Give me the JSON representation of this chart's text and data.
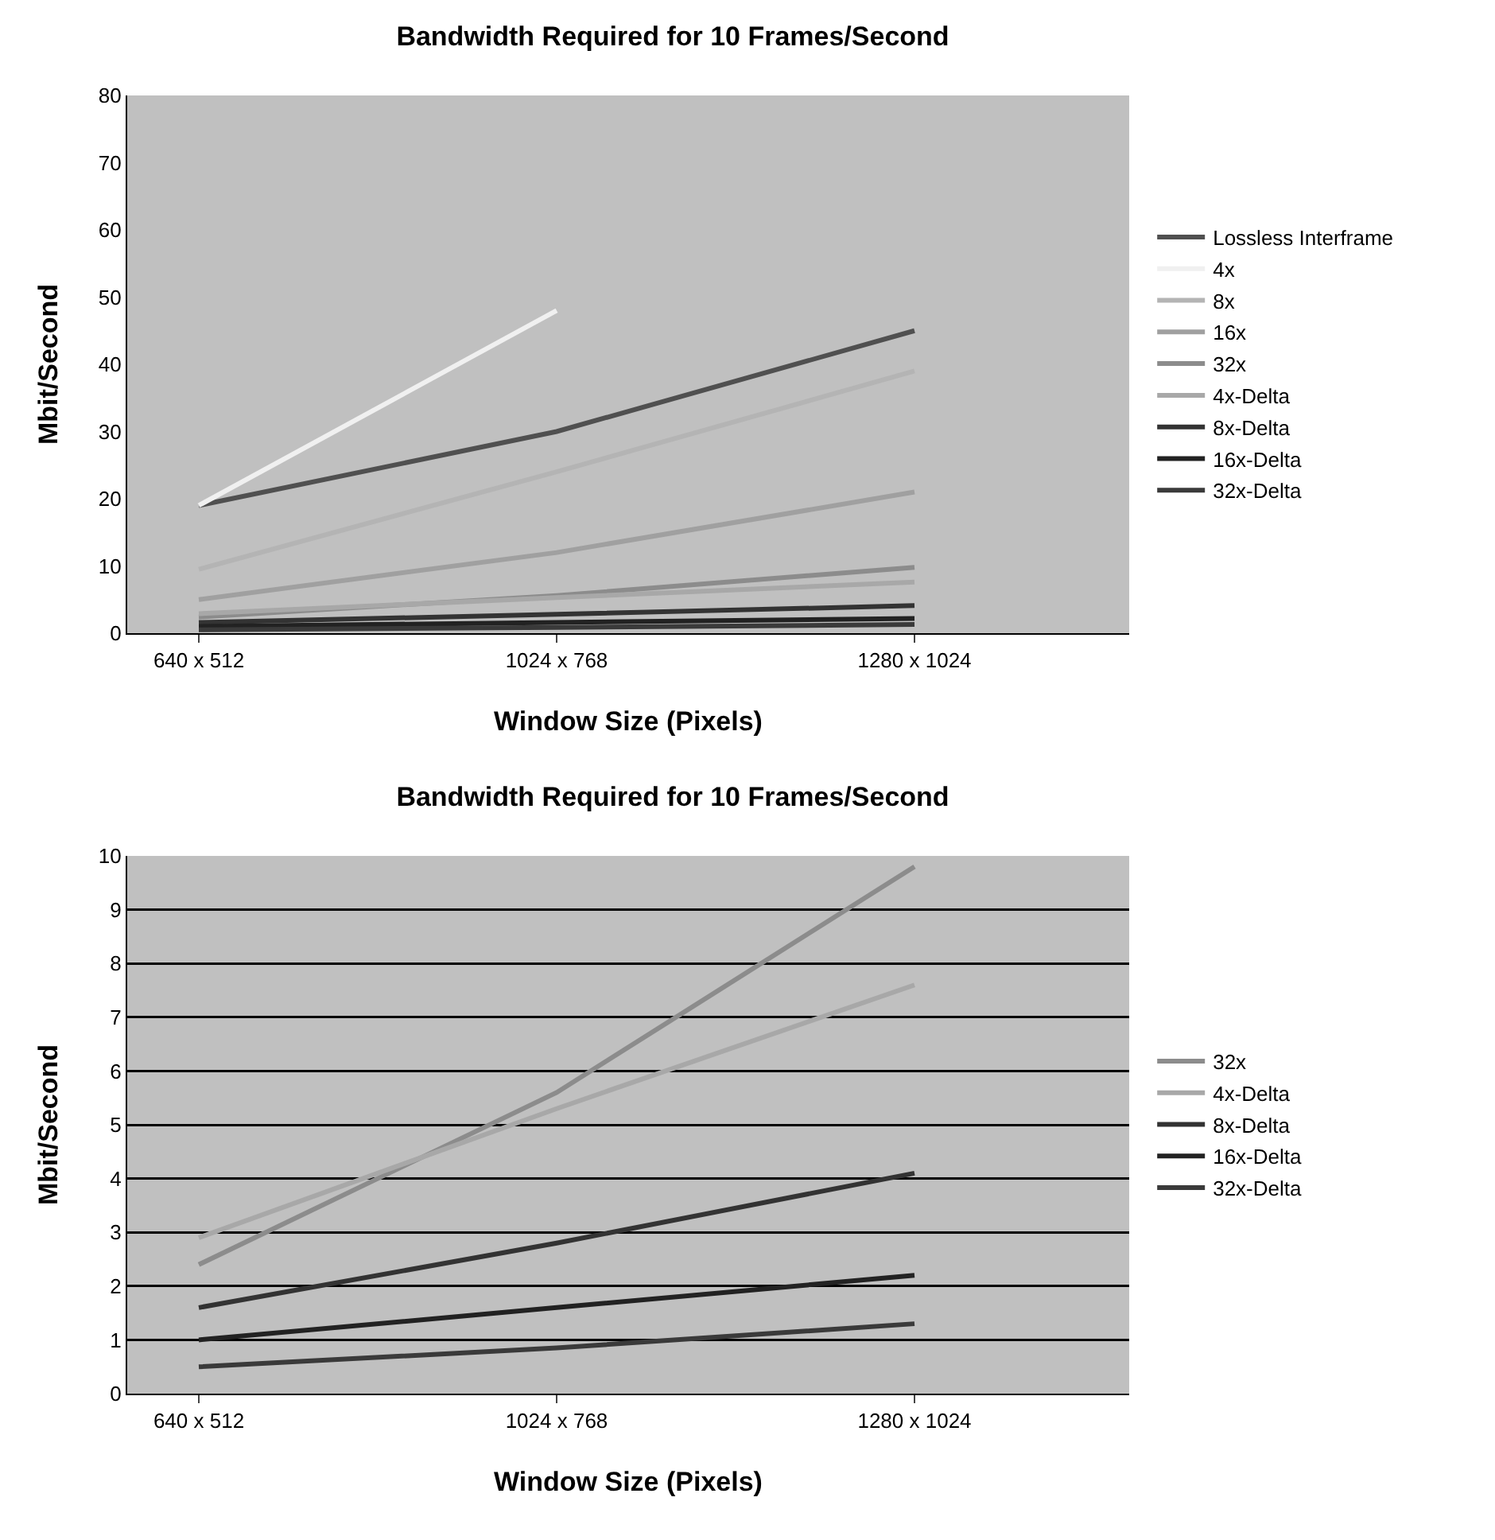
{
  "chart_data": [
    {
      "type": "line",
      "title": "Bandwidth Required for 10 Frames/Second",
      "xlabel": "Window Size (Pixels)",
      "ylabel": "Mbit/Second",
      "categories": [
        "640 x 512",
        "1024 x 768",
        "1280 x 1024"
      ],
      "ylim": [
        0,
        80
      ],
      "yticks": [
        0,
        10,
        20,
        30,
        40,
        50,
        60,
        70,
        80
      ],
      "grid": false,
      "legend": "right",
      "marker": "none",
      "line_style": "solid",
      "series": [
        {
          "name": "Lossless Interframe",
          "color": "#505050",
          "values": [
            19,
            30,
            45
          ]
        },
        {
          "name": "4x",
          "color": "#f0f0f0",
          "values": [
            19,
            48,
            null
          ]
        },
        {
          "name": "8x",
          "color": "#b4b4b4",
          "values": [
            9.5,
            24,
            39
          ]
        },
        {
          "name": "16x",
          "color": "#a0a0a0",
          "values": [
            5,
            12,
            21
          ]
        },
        {
          "name": "32x",
          "color": "#8c8c8c",
          "values": [
            2.4,
            5.6,
            9.8
          ]
        },
        {
          "name": "4x-Delta",
          "color": "#a8a8a8",
          "values": [
            2.9,
            5.3,
            7.6
          ]
        },
        {
          "name": "8x-Delta",
          "color": "#333333",
          "values": [
            1.6,
            2.8,
            4.1
          ]
        },
        {
          "name": "16x-Delta",
          "color": "#222222",
          "values": [
            1,
            1.6,
            2.2
          ]
        },
        {
          "name": "32x-Delta",
          "color": "#3a3a3a",
          "values": [
            0.5,
            0.85,
            1.3
          ]
        }
      ]
    },
    {
      "type": "line",
      "title": "Bandwidth Required for 10 Frames/Second",
      "xlabel": "Window Size (Pixels)",
      "ylabel": "Mbit/Second",
      "categories": [
        "640 x 512",
        "1024 x 768",
        "1280 x 1024"
      ],
      "ylim": [
        0,
        10
      ],
      "yticks": [
        0,
        1,
        2,
        3,
        4,
        5,
        6,
        7,
        8,
        9,
        10
      ],
      "grid": "y",
      "legend": "right",
      "marker": "none",
      "line_style": "solid",
      "series": [
        {
          "name": "32x",
          "color": "#8c8c8c",
          "values": [
            2.4,
            5.6,
            9.8
          ]
        },
        {
          "name": "4x-Delta",
          "color": "#a8a8a8",
          "values": [
            2.9,
            5.3,
            7.6
          ]
        },
        {
          "name": "8x-Delta",
          "color": "#333333",
          "values": [
            1.6,
            2.8,
            4.1
          ]
        },
        {
          "name": "16x-Delta",
          "color": "#222222",
          "values": [
            1,
            1.6,
            2.2
          ]
        },
        {
          "name": "32x-Delta",
          "color": "#3a3a3a",
          "values": [
            0.5,
            0.85,
            1.3
          ]
        }
      ]
    }
  ]
}
